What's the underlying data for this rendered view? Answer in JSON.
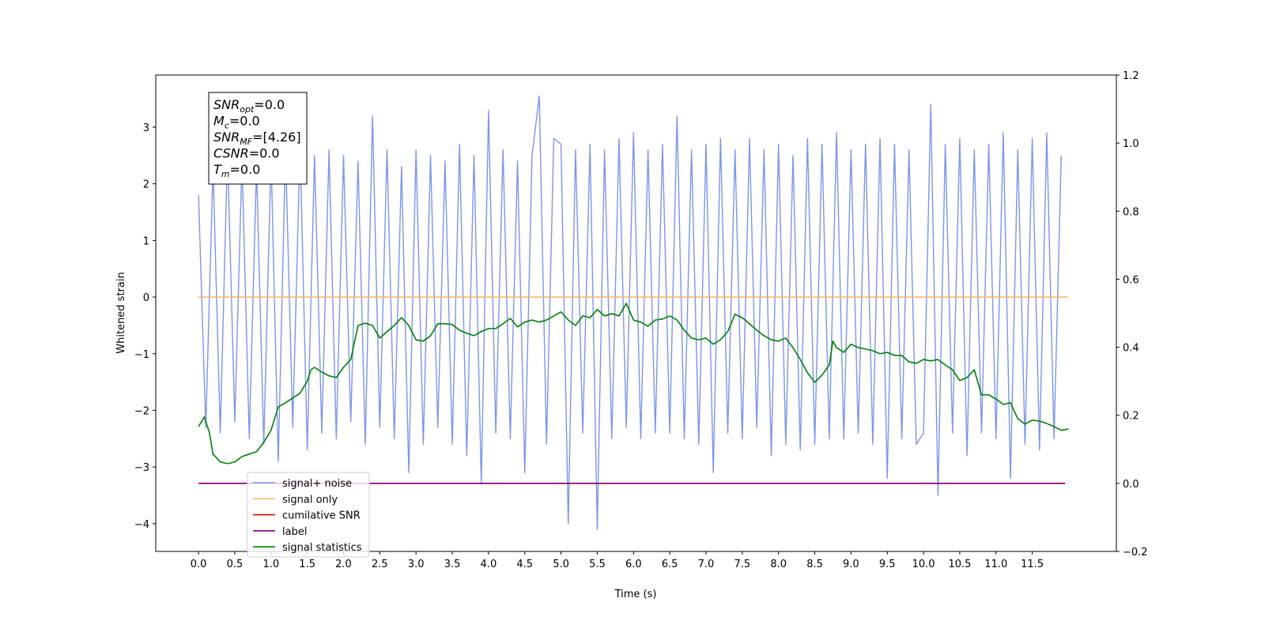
{
  "chart_data": {
    "type": "line",
    "xlabel": "Time (s)",
    "ylabel": "Whitened strain",
    "xlim": [
      -0.59,
      12.66
    ],
    "ylim": [
      -4.49,
      3.92
    ],
    "y2lim": [
      -0.2,
      1.2
    ],
    "xticks": [
      {
        "value": 0,
        "label": "0.0"
      },
      0.5,
      {
        "value": 1,
        "label": "1.0"
      },
      1.5,
      {
        "value": 2,
        "label": "2.0"
      },
      2.5,
      {
        "value": 3,
        "label": "3.0"
      },
      3.5,
      {
        "value": 4,
        "label": "4.0"
      },
      4.5,
      {
        "value": 5,
        "label": "5.0"
      },
      5.5,
      {
        "value": 6,
        "label": "6.0"
      },
      6.5,
      {
        "value": 7,
        "label": "7.0"
      },
      7.5,
      {
        "value": 8,
        "label": "8.0"
      },
      8.5,
      {
        "value": 9,
        "label": "9.0"
      },
      9.5,
      {
        "value": 10,
        "label": "10.0"
      },
      10.5,
      {
        "value": 11,
        "label": "11.0"
      },
      11.5
    ],
    "yticks": [
      {
        "value": -4,
        "label": "−4"
      },
      {
        "value": -3,
        "label": "−3"
      },
      {
        "value": -2,
        "label": "−2"
      },
      {
        "value": -1,
        "label": "−1"
      },
      0,
      1,
      2,
      3
    ],
    "y2ticks": [
      {
        "value": -0.2,
        "label": "−0.2"
      },
      {
        "value": 0,
        "label": "0.0"
      },
      0.2,
      0.4,
      0.6,
      0.8,
      {
        "value": 1,
        "label": "1.0"
      },
      1.2
    ],
    "legend": "lower left",
    "annotation": [
      {
        "main": "SNR",
        "sub": "opt",
        "rest": "=0.0"
      },
      {
        "main": "M",
        "sub": "c",
        "rest": "=0.0"
      },
      {
        "main": "SNR",
        "sub": "MF",
        "rest": "=[4.26]"
      },
      {
        "main": "CSNR",
        "rest": "=0.0"
      },
      {
        "main": "T",
        "sub": "m",
        "rest": "=0.0"
      }
    ],
    "series": [
      {
        "name": "signal+ noise",
        "color": "#7b96e8",
        "x": [
          0,
          0.1,
          0.2,
          0.3,
          0.4,
          0.5,
          0.6,
          0.7,
          0.8,
          0.9,
          1,
          1.1,
          1.2,
          1.3,
          1.4,
          1.5,
          1.6,
          1.7,
          1.8,
          1.9,
          2,
          2.1,
          2.2,
          2.3,
          2.4,
          2.5,
          2.6,
          2.7,
          2.8,
          2.9,
          3,
          3.1,
          3.2,
          3.3,
          3.4,
          3.5,
          3.6,
          3.7,
          3.8,
          3.9,
          4,
          4.1,
          4.2,
          4.3,
          4.4,
          4.5,
          4.6,
          4.7,
          4.8,
          4.9,
          5,
          5.1,
          5.2,
          5.3,
          5.4,
          5.5,
          5.6,
          5.7,
          5.8,
          5.9,
          6,
          6.1,
          6.2,
          6.3,
          6.4,
          6.5,
          6.6,
          6.7,
          6.8,
          6.9,
          7,
          7.1,
          7.2,
          7.3,
          7.4,
          7.5,
          7.6,
          7.7,
          7.8,
          7.9,
          8,
          8.1,
          8.2,
          8.3,
          8.4,
          8.5,
          8.6,
          8.7,
          8.8,
          8.9,
          9,
          9.1,
          9.2,
          9.3,
          9.4,
          9.5,
          9.6,
          9.7,
          9.8,
          9.9,
          10,
          10.1,
          10.2,
          10.3,
          10.4,
          10.5,
          10.6,
          10.7,
          10.8,
          10.9,
          11,
          11.1,
          11.2,
          11.3,
          11.4,
          11.5,
          11.6,
          11.7,
          11.8,
          11.9
        ],
        "values": [
          1.8,
          -2.3,
          2.3,
          -2.4,
          2.6,
          -2.2,
          2.4,
          -2.5,
          2.3,
          -2.6,
          2.5,
          -2.9,
          2.6,
          -2.3,
          2.7,
          -2.7,
          2.5,
          -2.4,
          2.6,
          -2.5,
          2.5,
          -2.2,
          2.4,
          -2.6,
          3.2,
          -2.3,
          2.6,
          -2.5,
          2.3,
          -3.1,
          2.6,
          -2.6,
          2.5,
          -2.3,
          2.4,
          -2.6,
          2.7,
          -2.8,
          2.5,
          -3.3,
          3.3,
          -2.4,
          2.6,
          -2.5,
          2.4,
          -3.1,
          2.5,
          3.55,
          -2.6,
          2.8,
          2.7,
          -4.0,
          2.6,
          -2.4,
          2.7,
          -4.1,
          2.6,
          -2.5,
          2.8,
          -2.3,
          2.9,
          -2.5,
          2.6,
          -2.4,
          2.7,
          -2.4,
          3.2,
          -2.5,
          2.6,
          -2.6,
          2.7,
          -3.1,
          2.8,
          -2.4,
          2.6,
          -2.5,
          2.8,
          -2.3,
          2.6,
          -2.8,
          2.7,
          -2.6,
          2.5,
          -2.7,
          2.8,
          -2.6,
          2.7,
          -2.5,
          2.9,
          -2.5,
          2.6,
          -2.4,
          2.7,
          -2.6,
          2.8,
          -3.2,
          2.7,
          -2.5,
          2.6,
          -2.6,
          -2.4,
          3.4,
          -3.5,
          2.7,
          -2.4,
          2.8,
          -2.8,
          2.6,
          -2.4,
          2.7,
          -2.5,
          2.9,
          -3.2,
          2.6,
          -2.6,
          2.8,
          -2.7,
          2.9,
          -2.5,
          2.5
        ]
      },
      {
        "name": "signal only",
        "color": "#f5b870",
        "x": [
          0,
          11.99
        ],
        "values": [
          0,
          0
        ]
      },
      {
        "name": "cumilative SNR",
        "color": "#ff0000",
        "axis": "y2",
        "x": [
          0,
          11.95
        ],
        "values": [
          0,
          0
        ]
      },
      {
        "name": "label",
        "color": "#800080",
        "axis": "y2",
        "x": [
          0,
          11.95
        ],
        "values": [
          0,
          0
        ]
      },
      {
        "name": "signal statistics",
        "color": "#008000",
        "axis": "y2",
        "x": [
          0,
          0.08,
          0.15,
          0.2,
          0.3,
          0.4,
          0.5,
          0.6,
          0.8,
          0.9,
          1,
          1.1,
          1.2,
          1.4,
          1.5,
          1.55,
          1.6,
          1.7,
          1.8,
          1.9,
          2,
          2.1,
          2.2,
          2.3,
          2.4,
          2.5,
          2.6,
          2.7,
          2.8,
          2.9,
          3,
          3.1,
          3.2,
          3.3,
          3.4,
          3.5,
          3.6,
          3.7,
          3.8,
          3.9,
          4,
          4.1,
          4.2,
          4.3,
          4.4,
          4.5,
          4.6,
          4.7,
          4.8,
          4.9,
          5,
          5.1,
          5.2,
          5.3,
          5.4,
          5.5,
          5.6,
          5.7,
          5.8,
          5.9,
          6,
          6.1,
          6.2,
          6.3,
          6.4,
          6.5,
          6.6,
          6.7,
          6.8,
          6.9,
          7,
          7.1,
          7.2,
          7.3,
          7.4,
          7.5,
          7.6,
          7.7,
          7.8,
          7.9,
          8,
          8.1,
          8.2,
          8.3,
          8.4,
          8.5,
          8.6,
          8.7,
          8.75,
          8.8,
          8.9,
          9,
          9.1,
          9.2,
          9.3,
          9.4,
          9.5,
          9.6,
          9.7,
          9.8,
          9.9,
          10,
          10.1,
          10.2,
          10.3,
          10.4,
          10.5,
          10.6,
          10.7,
          10.8,
          10.9,
          11,
          11.1,
          11.2,
          11.3,
          11.4,
          11.5,
          11.6,
          11.7,
          11.8,
          11.9,
          12
        ],
        "values": [
          0.167,
          0.195,
          0.149,
          0.086,
          0.063,
          0.058,
          0.063,
          0.079,
          0.093,
          0.121,
          0.156,
          0.225,
          0.237,
          0.265,
          0.3,
          0.334,
          0.341,
          0.327,
          0.316,
          0.311,
          0.341,
          0.364,
          0.464,
          0.471,
          0.464,
          0.427,
          0.446,
          0.464,
          0.487,
          0.464,
          0.422,
          0.418,
          0.434,
          0.469,
          0.469,
          0.467,
          0.45,
          0.441,
          0.434,
          0.446,
          0.455,
          0.455,
          0.469,
          0.485,
          0.46,
          0.474,
          0.48,
          0.474,
          0.48,
          0.492,
          0.504,
          0.48,
          0.464,
          0.492,
          0.487,
          0.511,
          0.492,
          0.499,
          0.492,
          0.529,
          0.48,
          0.474,
          0.462,
          0.48,
          0.483,
          0.492,
          0.48,
          0.45,
          0.427,
          0.422,
          0.427,
          0.409,
          0.422,
          0.446,
          0.497,
          0.487,
          0.469,
          0.45,
          0.434,
          0.422,
          0.418,
          0.427,
          0.399,
          0.364,
          0.325,
          0.297,
          0.318,
          0.348,
          0.418,
          0.399,
          0.385,
          0.409,
          0.399,
          0.395,
          0.39,
          0.381,
          0.385,
          0.376,
          0.376,
          0.357,
          0.353,
          0.364,
          0.36,
          0.364,
          0.348,
          0.334,
          0.302,
          0.311,
          0.334,
          0.26,
          0.26,
          0.248,
          0.232,
          0.237,
          0.19,
          0.174,
          0.186,
          0.183,
          0.176,
          0.167,
          0.156,
          0.16
        ]
      }
    ]
  }
}
